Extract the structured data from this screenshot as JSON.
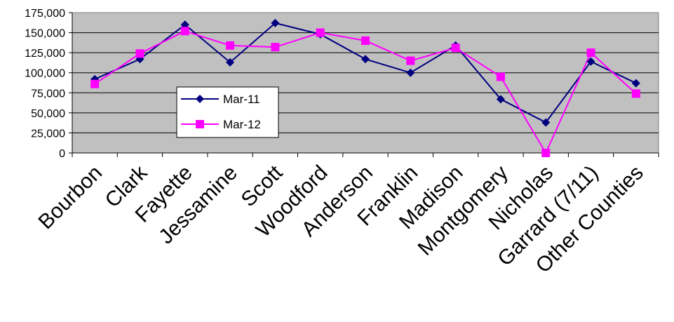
{
  "chart_data": {
    "type": "line",
    "categories": [
      "Bourbon",
      "Clark",
      "Fayette",
      "Jessamine",
      "Scott",
      "Woodford",
      "Anderson",
      "Franklin",
      "Madison",
      "Montgomery",
      "Nicholas",
      "Garrard (7/11)",
      "Other Counties"
    ],
    "series": [
      {
        "name": "Mar-11",
        "values": [
          92000,
          117000,
          160000,
          113000,
          162000,
          148000,
          117000,
          100000,
          134000,
          67000,
          38000,
          114000,
          87000
        ],
        "color": "#000080",
        "marker": "diamond"
      },
      {
        "name": "Mar-12",
        "values": [
          86000,
          124000,
          152000,
          134000,
          132000,
          150000,
          140000,
          115000,
          131000,
          95000,
          0,
          125000,
          74000
        ],
        "color": "#ff00ff",
        "marker": "square"
      }
    ],
    "y_ticks": [
      "0",
      "25,000",
      "50,000",
      "75,000",
      "100,000",
      "125,000",
      "150,000",
      "175,000"
    ],
    "ylim": [
      0,
      175000
    ],
    "grid": true,
    "plot_background": "#c0c0c0",
    "legend_position": "inside-left"
  }
}
